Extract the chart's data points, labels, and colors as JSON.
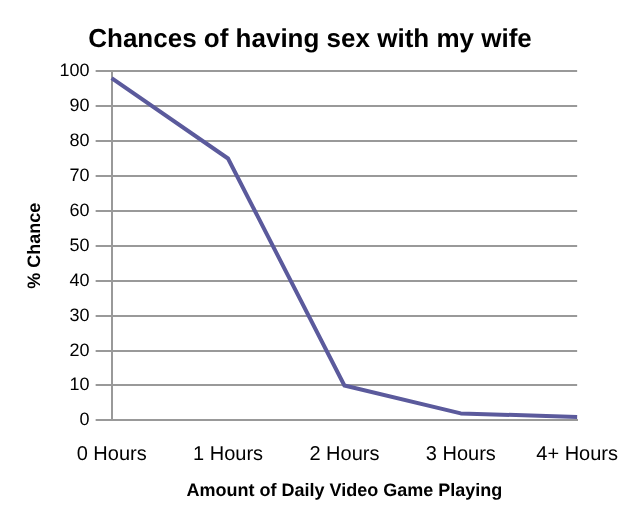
{
  "chart_data": {
    "type": "line",
    "title": "Chances of having sex with my wife",
    "xlabel": "Amount of Daily Video Game Playing",
    "ylabel": "% Chance",
    "categories": [
      "0 Hours",
      "1 Hours",
      "2 Hours",
      "3 Hours",
      "4+ Hours"
    ],
    "series": [
      {
        "color": "#5b5a9c",
        "values": [
          98,
          75,
          10,
          2,
          1
        ]
      }
    ],
    "ylim": [
      0,
      100
    ],
    "yticks": [
      0,
      10,
      20,
      30,
      40,
      50,
      60,
      70,
      80,
      90,
      100
    ],
    "grid": "y",
    "marker": "none",
    "line_style": "solid"
  }
}
